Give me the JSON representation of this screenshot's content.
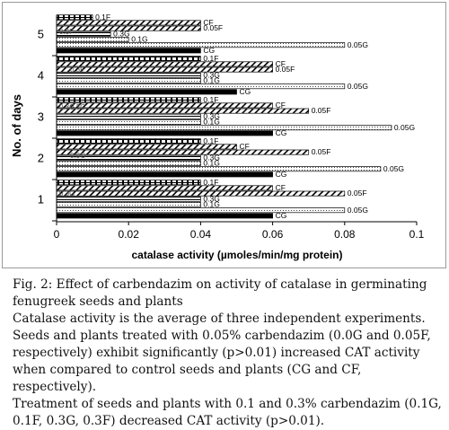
{
  "chart_data": {
    "type": "bar",
    "orientation": "horizontal",
    "ylabel": "No. of days",
    "xlabel": "catalase activity (µmoles/min/mg protein)",
    "xlim": [
      0,
      0.1
    ],
    "xticks": [
      "0",
      "0.02",
      "0.04",
      "0.06",
      "0.08",
      "0.1"
    ],
    "categories": [
      "1",
      "2",
      "3",
      "4",
      "5"
    ],
    "grid": false,
    "series": [
      {
        "name": "0.1F",
        "values": [
          0.04,
          0.04,
          0.04,
          0.04,
          0.01
        ]
      },
      {
        "name": "CF",
        "values": [
          0.06,
          0.05,
          0.06,
          0.06,
          0.04
        ]
      },
      {
        "name": "0.05F",
        "values": [
          0.08,
          0.07,
          0.07,
          0.06,
          0.04
        ]
      },
      {
        "name": "0.3G",
        "values": [
          0.04,
          0.04,
          0.04,
          0.04,
          0.015
        ]
      },
      {
        "name": "0.1G",
        "values": [
          0.04,
          0.04,
          0.04,
          0.04,
          0.02
        ]
      },
      {
        "name": "0.05G",
        "values": [
          0.08,
          0.09,
          0.093,
          0.08,
          0.08
        ]
      },
      {
        "name": "CG",
        "values": [
          0.06,
          0.06,
          0.06,
          0.05,
          0.04
        ]
      }
    ],
    "overlapping_label_fragments": [
      "0.3F",
      "0.3F",
      "0.3G",
      "0.3G",
      "0.3G",
      "0.3G"
    ]
  },
  "caption": {
    "title": "Fig. 2: Effect of carbendazim on activity of catalase in germinating fenugreek seeds and plants",
    "line1": "Catalase activity is the average of three independent experiments.",
    "line2": "Seeds and plants treated with 0.05% carbendazim (0.0G and 0.05F, respectively) exhibit significantly (p>0.01) increased CAT activity when compared to control seeds and plants (CG and CF, respectively).",
    "line3": "Treatment of seeds and plants with 0.1 and 0.3% carbendazim (0.1G, 0.1F, 0.3G, 0.3F) decreased CAT activity (p>0.01)."
  }
}
